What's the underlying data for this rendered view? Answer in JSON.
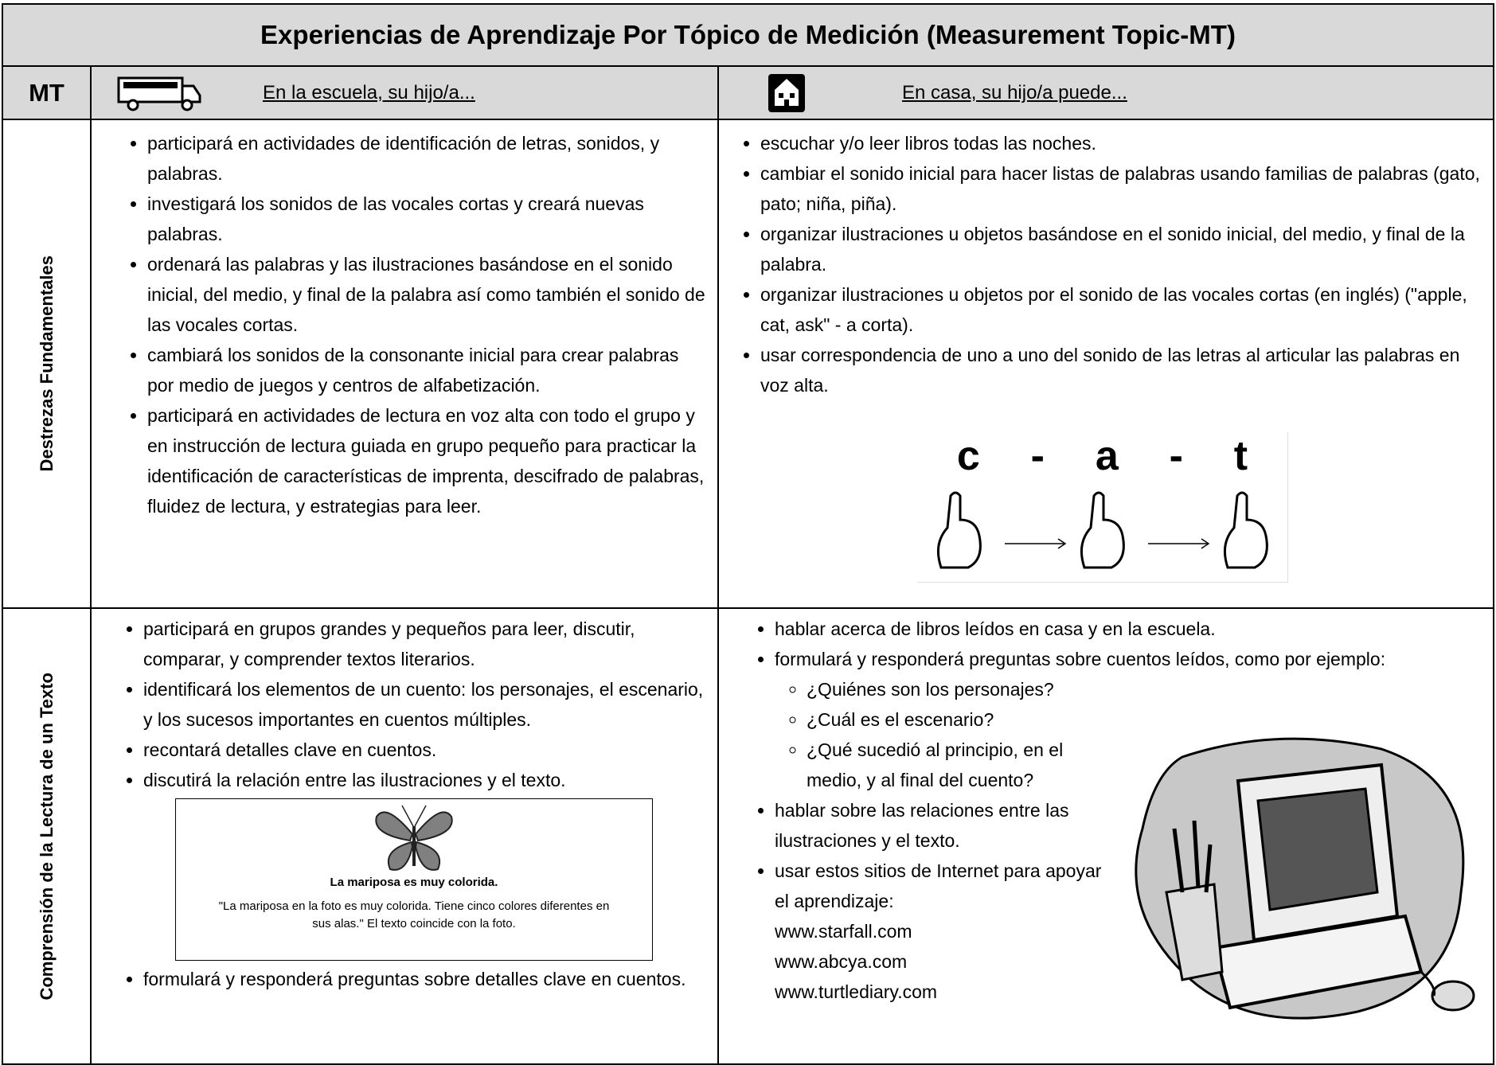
{
  "title": "Experiencias de Aprendizaje Por Tópico de Medición (Measurement Topic-MT)",
  "header": {
    "mt": "MT",
    "school": "En la escuela, su hijo/a...",
    "home": "En casa, su hijo/a puede..."
  },
  "rows": [
    {
      "topic": "Destrezas Fundamentales",
      "school": [
        "participará en actividades de identificación de letras, sonidos, y palabras.",
        "investigará los sonidos de las vocales cortas y creará nuevas palabras.",
        "ordenará las palabras y las ilustraciones basándose en el sonido inicial, del medio, y final de la palabra así como también el sonido de las vocales cortas.",
        "cambiará los sonidos de la consonante inicial para crear palabras por medio de juegos y centros de alfabetización.",
        "participará en actividades de lectura en voz alta con todo el grupo y en instrucción de lectura guiada en grupo pequeño para practicar la identificación de características de imprenta, descifrado de palabras, fluidez de lectura, y estrategias para leer."
      ],
      "home": [
        "escuchar y/o leer libros todas las noches.",
        "cambiar el sonido inicial para hacer listas de palabras usando familias de palabras (gato, pato; niña, piña).",
        "organizar ilustraciones u objetos basándose en el sonido inicial, del medio, y final de la palabra.",
        "organizar ilustraciones u objetos por el sonido de las vocales cortas (en inglés) (\"apple, cat, ask\" - a corta).",
        "usar correspondencia de uno a uno del sonido de las letras al articular las palabras en voz alta."
      ],
      "figure": {
        "letters": [
          "c",
          "-",
          "a",
          "-",
          "t"
        ]
      }
    },
    {
      "topic": "Comprensión de la Lectura de un Texto",
      "school": [
        "participará en grupos grandes y pequeños para leer, discutir, comparar, y comprender textos literarios.",
        "identificará los elementos de un cuento: los personajes, el escenario, y los sucesos importantes en cuentos múltiples.",
        "recontará detalles clave en cuentos.",
        "discutirá la relación entre las ilustraciones y el texto.",
        "formulará y responderá preguntas sobre detalles clave en cuentos."
      ],
      "figure": {
        "heading": "La mariposa es muy colorida.",
        "caption": "\"La mariposa en la foto es muy colorida.  Tiene cinco colores diferentes en sus alas.\"  El texto coincide con la foto."
      },
      "home": [
        "hablar acerca de libros leídos en casa y en la escuela.",
        {
          "text": "formulará y responderá preguntas sobre cuentos leídos, como por ejemplo:",
          "sub": [
            "¿Quiénes son los personajes?",
            "¿Cuál es el escenario?",
            "¿Qué sucedió al principio, en el medio, y al final del cuento?"
          ]
        },
        "hablar sobre las relaciones entre las ilustraciones y el texto.",
        {
          "text": "usar estos sitios de Internet para apoyar el aprendizaje:",
          "links": [
            "www.starfall.com",
            "www.abcya.com",
            "www.turtlediary.com"
          ]
        }
      ]
    }
  ]
}
